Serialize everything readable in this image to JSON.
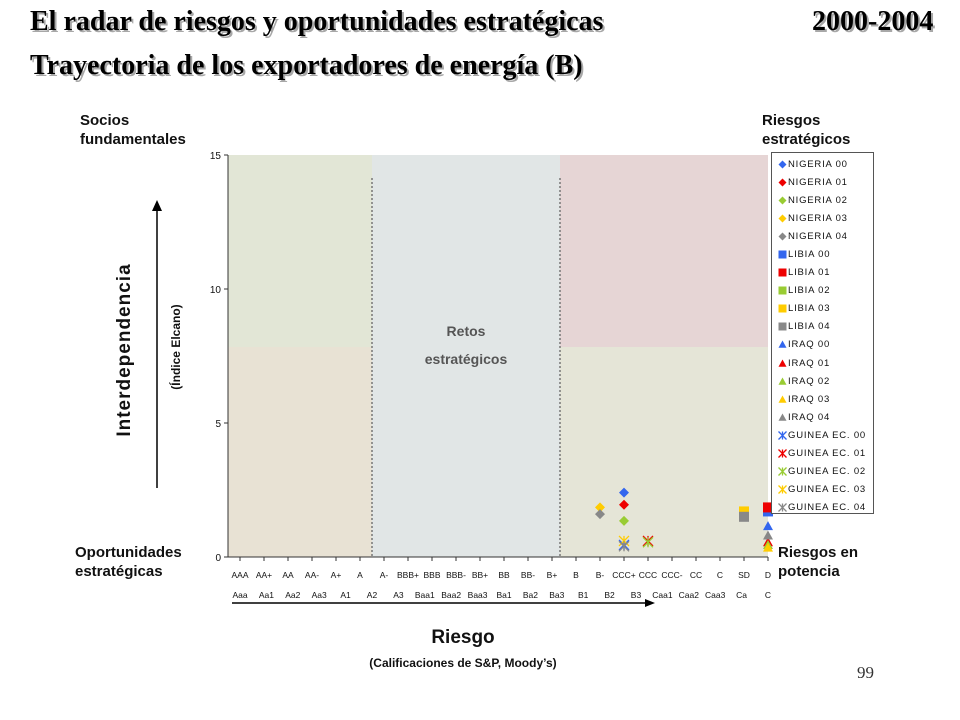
{
  "header": {
    "title": "El radar de riesgos y oportunidades estratégicas",
    "period": "2000-2004",
    "subtitle": "Trayectoria de los exportadores de energía (B)"
  },
  "quadrants": {
    "top_left": "Socios fundamentales",
    "top_right": "Riesgos estratégicos",
    "bottom_left": "Oportunidades estratégicas",
    "bottom_right": "Riesgos en potencia",
    "center": "Retos estratégicos"
  },
  "chart_data": {
    "type": "scatter",
    "ylabel": "Interdependencia",
    "ylabel_sub": "(Índice Elcano)",
    "xlabel": "Riesgo",
    "xlabel_sub": "(Calificaciones de S&P, Moody’s)",
    "ylim": [
      0,
      15
    ],
    "yticks": [
      0,
      5,
      10,
      15
    ],
    "x_categories_sp": [
      "AAA",
      "AA+",
      "AA",
      "AA-",
      "A+",
      "A",
      "A-",
      "BBB+",
      "BBB",
      "BBB-",
      "BB+",
      "BB",
      "BB-",
      "B+",
      "B",
      "B-",
      "CCC+",
      "CCC",
      "CCC-",
      "CC",
      "C",
      "SD",
      "D"
    ],
    "x_categories_moodys": [
      "Aaa",
      "Aa1",
      "Aa2",
      "Aa3",
      "A1",
      "A2",
      "A3",
      "Baa1",
      "Baa2",
      "Baa3",
      "Ba1",
      "Ba2",
      "Ba3",
      "B1",
      "B2",
      "B3",
      "Caa1",
      "Caa2",
      "Caa3",
      "Ca",
      "C"
    ],
    "series": [
      {
        "name": "NIGERIA 00",
        "color": "#3366ee",
        "marker": "diamond",
        "x": "CCC+",
        "y": 2.4
      },
      {
        "name": "NIGERIA 01",
        "color": "#ee0000",
        "marker": "diamond",
        "x": "CCC+",
        "y": 1.95
      },
      {
        "name": "NIGERIA 02",
        "color": "#99cc33",
        "marker": "diamond",
        "x": "CCC+",
        "y": 1.35
      },
      {
        "name": "NIGERIA 03",
        "color": "#ffcc00",
        "marker": "diamond",
        "x": "B-",
        "y": 1.85
      },
      {
        "name": "NIGERIA 04",
        "color": "#888888",
        "marker": "diamond",
        "x": "B-",
        "y": 1.6
      },
      {
        "name": "LIBIA 00",
        "color": "#3366ee",
        "marker": "square",
        "x": "D",
        "y": 1.7
      },
      {
        "name": "LIBIA 01",
        "color": "#ee0000",
        "marker": "square",
        "x": "D",
        "y": 1.85
      },
      {
        "name": "LIBIA 02",
        "color": "#99cc33",
        "marker": "square",
        "x": "SD",
        "y": 1.55
      },
      {
        "name": "LIBIA 03",
        "color": "#ffcc00",
        "marker": "square",
        "x": "SD",
        "y": 1.7
      },
      {
        "name": "LIBIA 04",
        "color": "#888888",
        "marker": "square",
        "x": "SD",
        "y": 1.5
      },
      {
        "name": "IRAQ 00",
        "color": "#3366ee",
        "marker": "triangle",
        "x": "D",
        "y": 1.15
      },
      {
        "name": "IRAQ 01",
        "color": "#ee0000",
        "marker": "triangle",
        "x": "D",
        "y": 0.55
      },
      {
        "name": "IRAQ 02",
        "color": "#99cc33",
        "marker": "triangle",
        "x": "D",
        "y": 0.45
      },
      {
        "name": "IRAQ 03",
        "color": "#ffcc00",
        "marker": "triangle",
        "x": "D",
        "y": 0.35
      },
      {
        "name": "IRAQ 04",
        "color": "#888888",
        "marker": "triangle",
        "x": "D",
        "y": 0.8
      },
      {
        "name": "GUINEA EC. 00",
        "color": "#3366ee",
        "marker": "asterisk",
        "x": "CCC+",
        "y": 0.45
      },
      {
        "name": "GUINEA EC. 01",
        "color": "#ee0000",
        "marker": "asterisk",
        "x": "CCC",
        "y": 0.6
      },
      {
        "name": "GUINEA EC. 02",
        "color": "#99cc33",
        "marker": "asterisk",
        "x": "CCC",
        "y": 0.55
      },
      {
        "name": "GUINEA EC. 03",
        "color": "#ffcc00",
        "marker": "asterisk",
        "x": "CCC+",
        "y": 0.6
      },
      {
        "name": "GUINEA EC. 04",
        "color": "#888888",
        "marker": "asterisk",
        "x": "CCC+",
        "y": 0.4
      }
    ],
    "legend_labels": [
      "NIGERIA 00",
      "NIGERIA 01",
      "NIGERIA 02",
      "NIGERIA 03",
      "NIGERIA 04",
      "LIBIA 00",
      "LIBIA 01",
      "LIBIA 02",
      "LIBIA 03",
      "LIBIA 04",
      "IRAQ 00",
      "IRAQ 01",
      "IRAQ 02",
      "IRAQ 03",
      "IRAQ 04",
      "GUINEA EC. 00",
      "GUINEA EC. 01",
      "GUINEA EC. 02",
      "GUINEA EC. 03",
      "GUINEA EC. 04"
    ],
    "legend_position": "right",
    "grid": false
  },
  "page_number": "99"
}
